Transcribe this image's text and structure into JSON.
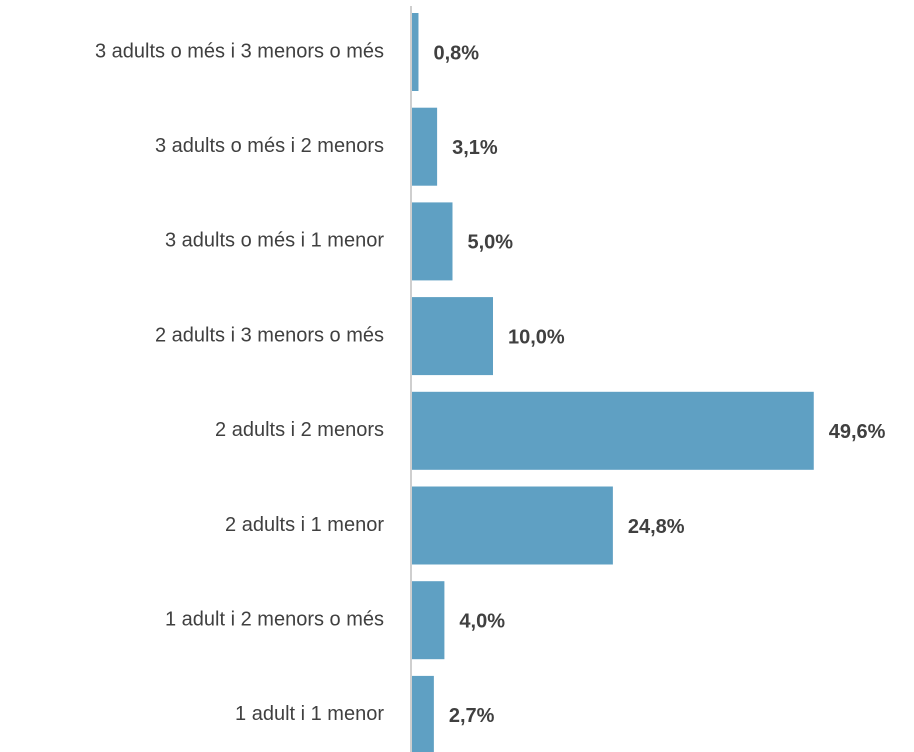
{
  "chart_data": {
    "type": "bar",
    "orientation": "horizontal",
    "categories": [
      "3 adults o més i 3 menors o més",
      "3 adults o més i 2 menors",
      "3 adults o més i 1 menor",
      "2 adults i 3 menors o més",
      "2 adults i 2 menors",
      "2 adults i 1 menor",
      "1 adult i 2 menors o més",
      "1 adult i 1 menor"
    ],
    "values": [
      0.8,
      3.1,
      5.0,
      10.0,
      49.6,
      24.8,
      4.0,
      2.7
    ],
    "value_labels": [
      "0,8%",
      "3,1%",
      "5,0%",
      "10,0%",
      "49,6%",
      "24,8%",
      "4,0%",
      "2,7%"
    ],
    "color": "#5fa0c3"
  }
}
